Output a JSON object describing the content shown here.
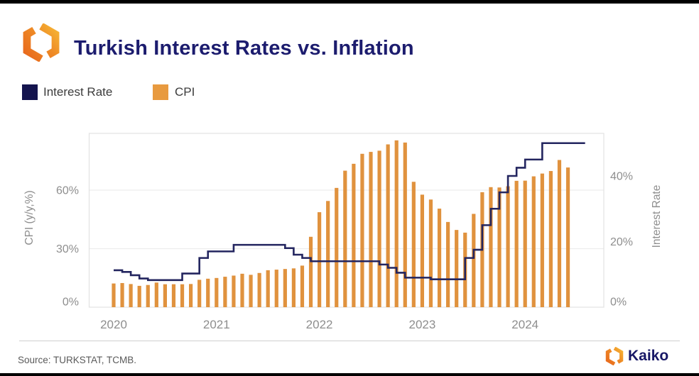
{
  "header": {
    "title": "Turkish Interest Rates vs. Inflation"
  },
  "legend": {
    "items": [
      {
        "label": "Interest Rate",
        "color": "#14144E"
      },
      {
        "label": "CPI",
        "color": "#E89A3F"
      }
    ]
  },
  "footer": {
    "source": "Source: TURKSTAT, TCMB.",
    "brand": "Kaiko"
  },
  "colors": {
    "title_navy": "#1C1C6E",
    "line_navy": "#23255F",
    "bar_orange": "#E0923E",
    "grid": "#EDEDED",
    "plot_border": "#E2E2E2",
    "tick_text": "#8E8E8E"
  },
  "chart_data": {
    "type": "bar",
    "subtype": "monthly bars (CPI, left axis) + step line (policy interest rate, right axis)",
    "x_unit": "month",
    "x_start": "2020-01",
    "x_ticks": [
      "2020",
      "2021",
      "2022",
      "2023",
      "2024"
    ],
    "left_axis": {
      "label": "CPI (y/y,%)",
      "ticks": [
        "0%",
        "30%",
        "60%"
      ],
      "tick_values": [
        0,
        30,
        60
      ],
      "range": [
        0,
        89
      ]
    },
    "right_axis": {
      "label": "Interest Rate",
      "ticks": [
        "0%",
        "20%",
        "40%"
      ],
      "tick_values": [
        0,
        20,
        40
      ],
      "range": [
        0,
        53.5
      ]
    },
    "grid": "horizontal only",
    "legend_position": "top-left above plot",
    "series": [
      {
        "name": "CPI",
        "type": "bar",
        "axis": "left",
        "color": "#E0923E",
        "x_start": "2020-01",
        "values": [
          12.15,
          12.37,
          11.86,
          10.94,
          11.39,
          12.62,
          11.76,
          11.77,
          11.75,
          11.89,
          14.03,
          14.6,
          14.97,
          15.61,
          16.19,
          17.14,
          16.59,
          17.53,
          18.95,
          19.25,
          19.58,
          19.89,
          21.31,
          36.08,
          48.69,
          54.44,
          61.14,
          69.97,
          73.5,
          78.62,
          79.6,
          80.21,
          83.45,
          85.51,
          84.39,
          64.27,
          57.68,
          55.18,
          50.51,
          43.68,
          39.59,
          38.21,
          47.83,
          58.94,
          61.53,
          61.36,
          61.98,
          64.77,
          64.86,
          67.07,
          68.5,
          69.8,
          75.45,
          71.6
        ]
      },
      {
        "name": "Interest Rate",
        "type": "step-line",
        "axis": "right",
        "color": "#23255F",
        "x_start": "2020-01",
        "values": [
          11.25,
          10.75,
          9.75,
          8.75,
          8.25,
          8.25,
          8.25,
          8.25,
          10.25,
          10.25,
          15.0,
          17.0,
          17.0,
          17.0,
          19.0,
          19.0,
          19.0,
          19.0,
          19.0,
          19.0,
          18.0,
          16.0,
          15.0,
          14.0,
          14.0,
          14.0,
          14.0,
          14.0,
          14.0,
          14.0,
          14.0,
          13.0,
          12.0,
          10.5,
          9.0,
          9.0,
          9.0,
          8.5,
          8.5,
          8.5,
          8.5,
          15.0,
          17.5,
          25.0,
          30.0,
          35.0,
          40.0,
          42.5,
          45.0,
          45.0,
          50.0,
          50.0,
          50.0,
          50.0,
          50.0,
          50.0
        ]
      }
    ]
  }
}
